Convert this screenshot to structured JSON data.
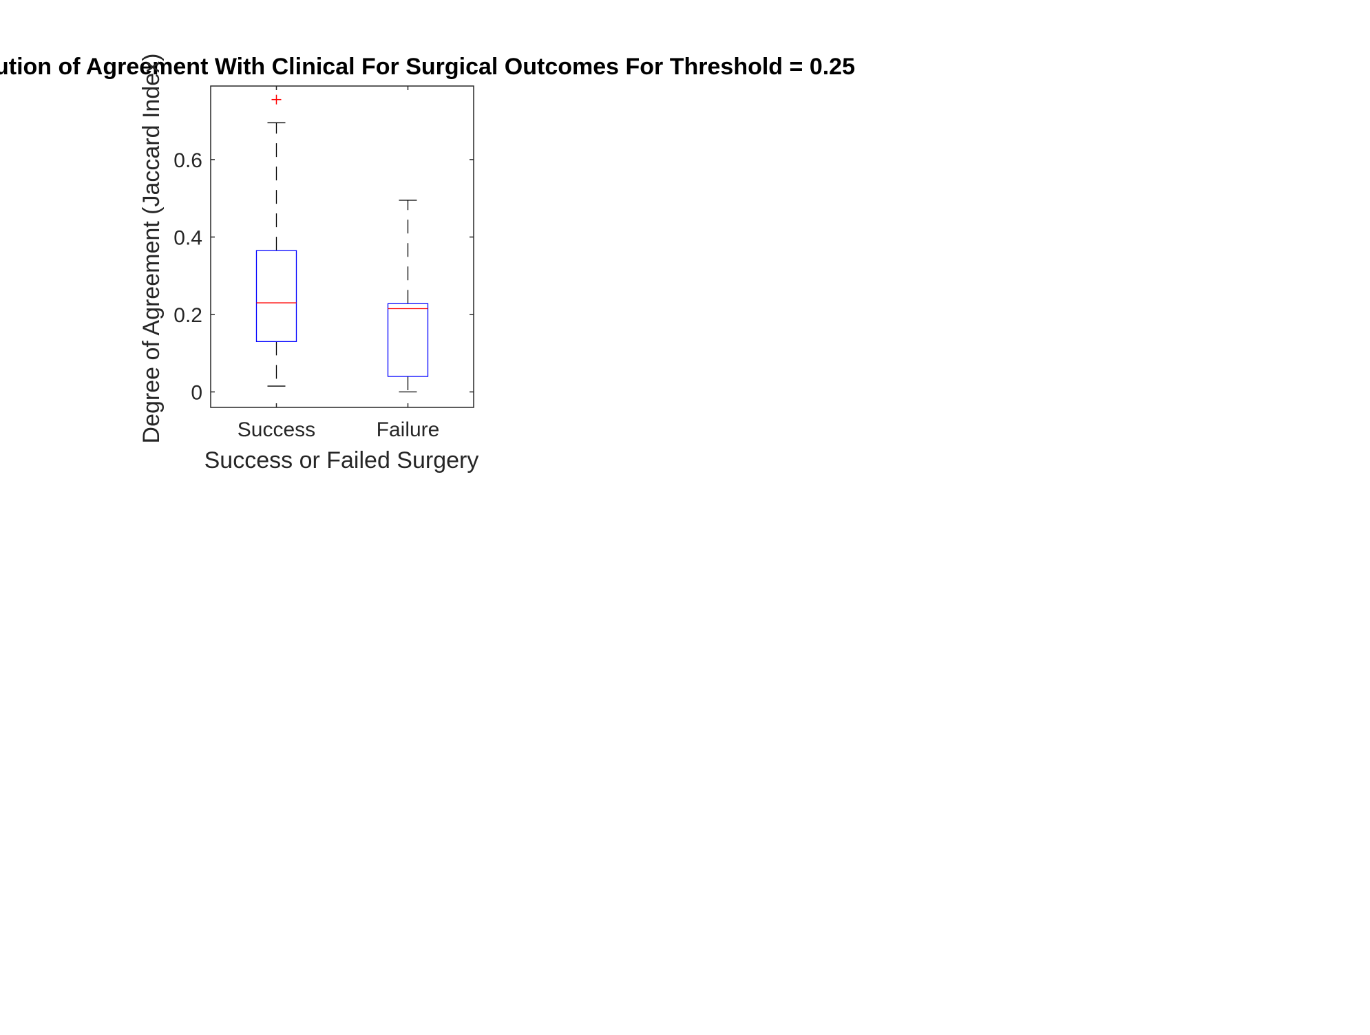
{
  "chart_data": {
    "type": "box",
    "title": "ution of Agreement With Clinical For Surgical Outcomes For Threshold = 0.25",
    "xlabel": "Success or Failed Surgery",
    "ylabel": "Degree of Agreement (Jaccard Index)",
    "categories": [
      "Success",
      "Failure"
    ],
    "yticks": [
      0,
      0.2,
      0.4,
      0.6
    ],
    "ytick_labels": [
      "0",
      "0.2",
      "0.4",
      "0.6"
    ],
    "ylim": [
      -0.04,
      0.79
    ],
    "boxes": [
      {
        "category": "Success",
        "whisker_low": 0.015,
        "q1": 0.13,
        "median": 0.23,
        "q3": 0.365,
        "whisker_high": 0.695,
        "outliers": [
          0.755
        ]
      },
      {
        "category": "Failure",
        "whisker_low": 0.0,
        "q1": 0.04,
        "median": 0.215,
        "q3": 0.228,
        "whisker_high": 0.495,
        "outliers": []
      }
    ],
    "grid": false,
    "colors": {
      "box": "#0000ff",
      "median": "#ff0000",
      "whisker": "#000000",
      "outlier": "#ff0000",
      "axis": "#262626"
    }
  }
}
